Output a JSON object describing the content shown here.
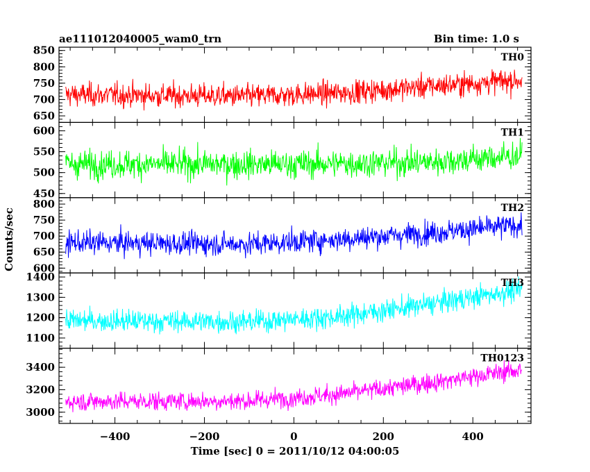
{
  "header": {
    "title": "ae111012040005_wam0_trn",
    "bin_time": "Bin time: 1.0 s"
  },
  "chart_data": {
    "type": "line",
    "xlabel": "Time [sec] 0 = 2011/10/12 04:00:05",
    "ylabel": "Counts/sec",
    "xlim": [
      -525,
      530
    ],
    "x_ticks": [
      -400,
      -200,
      0,
      200,
      400
    ],
    "x_range": [
      -510,
      510
    ],
    "bin": 1.0,
    "panels": [
      {
        "name": "TH0",
        "color": "#ff0000",
        "ylim": [
          630,
          860
        ],
        "yticks": [
          650,
          700,
          750,
          800,
          850
        ],
        "trend": [
          [
            -510,
            715
          ],
          [
            -100,
            710
          ],
          [
            100,
            720
          ],
          [
            300,
            740
          ],
          [
            510,
            760
          ]
        ],
        "noise": 30
      },
      {
        "name": "TH1",
        "color": "#00ff00",
        "ylim": [
          440,
          620
        ],
        "yticks": [
          450,
          500,
          550,
          600
        ],
        "trend": [
          [
            -510,
            520
          ],
          [
            0,
            520
          ],
          [
            300,
            525
          ],
          [
            510,
            540
          ]
        ],
        "noise": 28
      },
      {
        "name": "TH2",
        "color": "#0000ff",
        "ylim": [
          585,
          820
        ],
        "yticks": [
          600,
          650,
          700,
          750,
          800
        ],
        "trend": [
          [
            -510,
            680
          ],
          [
            -100,
            675
          ],
          [
            100,
            690
          ],
          [
            300,
            710
          ],
          [
            510,
            735
          ]
        ],
        "noise": 30
      },
      {
        "name": "TH3",
        "color": "#00ffff",
        "ylim": [
          1050,
          1420
        ],
        "yticks": [
          1100,
          1200,
          1300,
          1400
        ],
        "trend": [
          [
            -510,
            1185
          ],
          [
            -100,
            1180
          ],
          [
            100,
            1205
          ],
          [
            300,
            1265
          ],
          [
            510,
            1340
          ]
        ],
        "noise": 45
      },
      {
        "name": "TH0123",
        "color": "#ff00ff",
        "ylim": [
          2900,
          3570
        ],
        "yticks": [
          3000,
          3200,
          3400
        ],
        "trend": [
          [
            -510,
            3095
          ],
          [
            -100,
            3100
          ],
          [
            100,
            3160
          ],
          [
            300,
            3260
          ],
          [
            510,
            3380
          ]
        ],
        "noise": 70
      }
    ]
  }
}
